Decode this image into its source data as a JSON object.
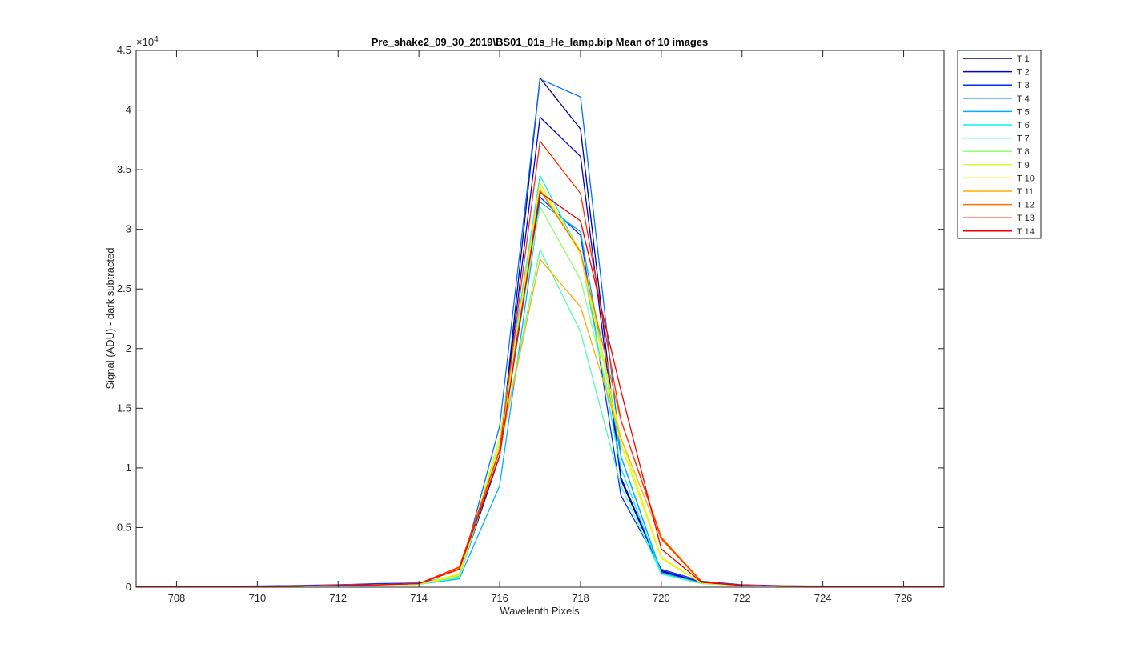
{
  "chart_data": {
    "type": "line",
    "title": "Pre_shake2_09_30_2019\\BS01_01s_He_lamp.bip  Mean of 10 images",
    "xlabel": "Wavelenth Pixels",
    "ylabel": "Signal (ADU) - dark subtracted",
    "y_exponent_label": "×10",
    "y_exponent_power": "4",
    "xlim": [
      707,
      727
    ],
    "ylim": [
      0,
      45000
    ],
    "x_ticks": [
      708,
      710,
      712,
      714,
      716,
      718,
      720,
      722,
      724,
      726
    ],
    "y_ticks": [
      0,
      5000,
      10000,
      15000,
      20000,
      25000,
      30000,
      35000,
      40000,
      45000
    ],
    "y_tick_labels": [
      "0",
      "0.5",
      "1",
      "1.5",
      "2",
      "2.5",
      "3",
      "3.5",
      "4",
      "4.5"
    ],
    "grid": false,
    "legend_position": "outside-top-right",
    "x": [
      707,
      708,
      709,
      710,
      711,
      712,
      713,
      714,
      715,
      716,
      717,
      718,
      719,
      720,
      721,
      722,
      723,
      724,
      725,
      726,
      727
    ],
    "series": [
      {
        "name": "T 1",
        "color": "#00008f",
        "values": [
          50,
          60,
          70,
          80,
          100,
          150,
          200,
          250,
          900,
          11000,
          42700,
          38400,
          9200,
          1400,
          400,
          150,
          100,
          80,
          60,
          50,
          50
        ]
      },
      {
        "name": "T 2",
        "color": "#0000cf",
        "values": [
          50,
          60,
          70,
          80,
          100,
          150,
          200,
          250,
          900,
          11500,
          39400,
          36100,
          9000,
          1300,
          400,
          150,
          100,
          80,
          60,
          50,
          50
        ]
      },
      {
        "name": "T 3",
        "color": "#0030ff",
        "values": [
          60,
          70,
          80,
          100,
          150,
          200,
          300,
          350,
          1000,
          12000,
          32700,
          29500,
          7700,
          1500,
          500,
          200,
          120,
          90,
          70,
          60,
          50
        ]
      },
      {
        "name": "T 4",
        "color": "#0070ff",
        "values": [
          50,
          60,
          70,
          80,
          100,
          150,
          200,
          250,
          900,
          13500,
          42600,
          41100,
          11000,
          1200,
          350,
          150,
          100,
          80,
          60,
          50,
          50
        ]
      },
      {
        "name": "T 5",
        "color": "#00b0ff",
        "values": [
          50,
          60,
          70,
          80,
          100,
          150,
          200,
          250,
          700,
          8500,
          32300,
          29800,
          11000,
          1200,
          350,
          150,
          100,
          80,
          60,
          50,
          50
        ]
      },
      {
        "name": "T 6",
        "color": "#10f0ef",
        "values": [
          50,
          60,
          70,
          80,
          100,
          150,
          200,
          250,
          800,
          12500,
          34500,
          28000,
          10000,
          1100,
          300,
          150,
          100,
          80,
          60,
          50,
          50
        ]
      },
      {
        "name": "T 7",
        "color": "#50ffaf",
        "values": [
          50,
          60,
          70,
          80,
          100,
          150,
          200,
          250,
          800,
          11500,
          28300,
          21400,
          8500,
          1100,
          300,
          150,
          100,
          80,
          60,
          50,
          50
        ]
      },
      {
        "name": "T 8",
        "color": "#8fff70",
        "values": [
          50,
          60,
          70,
          80,
          100,
          150,
          200,
          250,
          900,
          12000,
          31900,
          25800,
          12000,
          2500,
          350,
          150,
          100,
          80,
          60,
          50,
          50
        ]
      },
      {
        "name": "T 9",
        "color": "#cfff30",
        "values": [
          50,
          60,
          70,
          80,
          100,
          150,
          200,
          250,
          1000,
          12500,
          33500,
          28200,
          12500,
          2500,
          350,
          150,
          100,
          80,
          60,
          50,
          50
        ]
      },
      {
        "name": "T 10",
        "color": "#ffef00",
        "values": [
          50,
          60,
          70,
          80,
          100,
          150,
          200,
          250,
          1100,
          12000,
          33900,
          27900,
          12000,
          2400,
          350,
          150,
          100,
          80,
          60,
          50,
          50
        ]
      },
      {
        "name": "T 11",
        "color": "#ffaf00",
        "values": [
          50,
          60,
          70,
          80,
          100,
          150,
          200,
          300,
          1500,
          11500,
          27500,
          23500,
          12500,
          4000,
          400,
          150,
          100,
          80,
          60,
          50,
          50
        ]
      },
      {
        "name": "T 12",
        "color": "#ff7000",
        "values": [
          50,
          60,
          70,
          80,
          100,
          150,
          200,
          300,
          1600,
          11000,
          33300,
          28100,
          14000,
          4200,
          450,
          150,
          100,
          80,
          60,
          50,
          50
        ]
      },
      {
        "name": "T 13",
        "color": "#ff3000",
        "values": [
          50,
          60,
          70,
          80,
          100,
          150,
          200,
          300,
          1700,
          11500,
          37400,
          33000,
          14000,
          4100,
          450,
          150,
          100,
          80,
          60,
          50,
          50
        ]
      },
      {
        "name": "T 14",
        "color": "#ef0000",
        "values": [
          50,
          60,
          70,
          80,
          100,
          150,
          200,
          300,
          1500,
          11000,
          33100,
          30700,
          16500,
          3200,
          400,
          150,
          100,
          80,
          60,
          50,
          50
        ]
      }
    ]
  }
}
